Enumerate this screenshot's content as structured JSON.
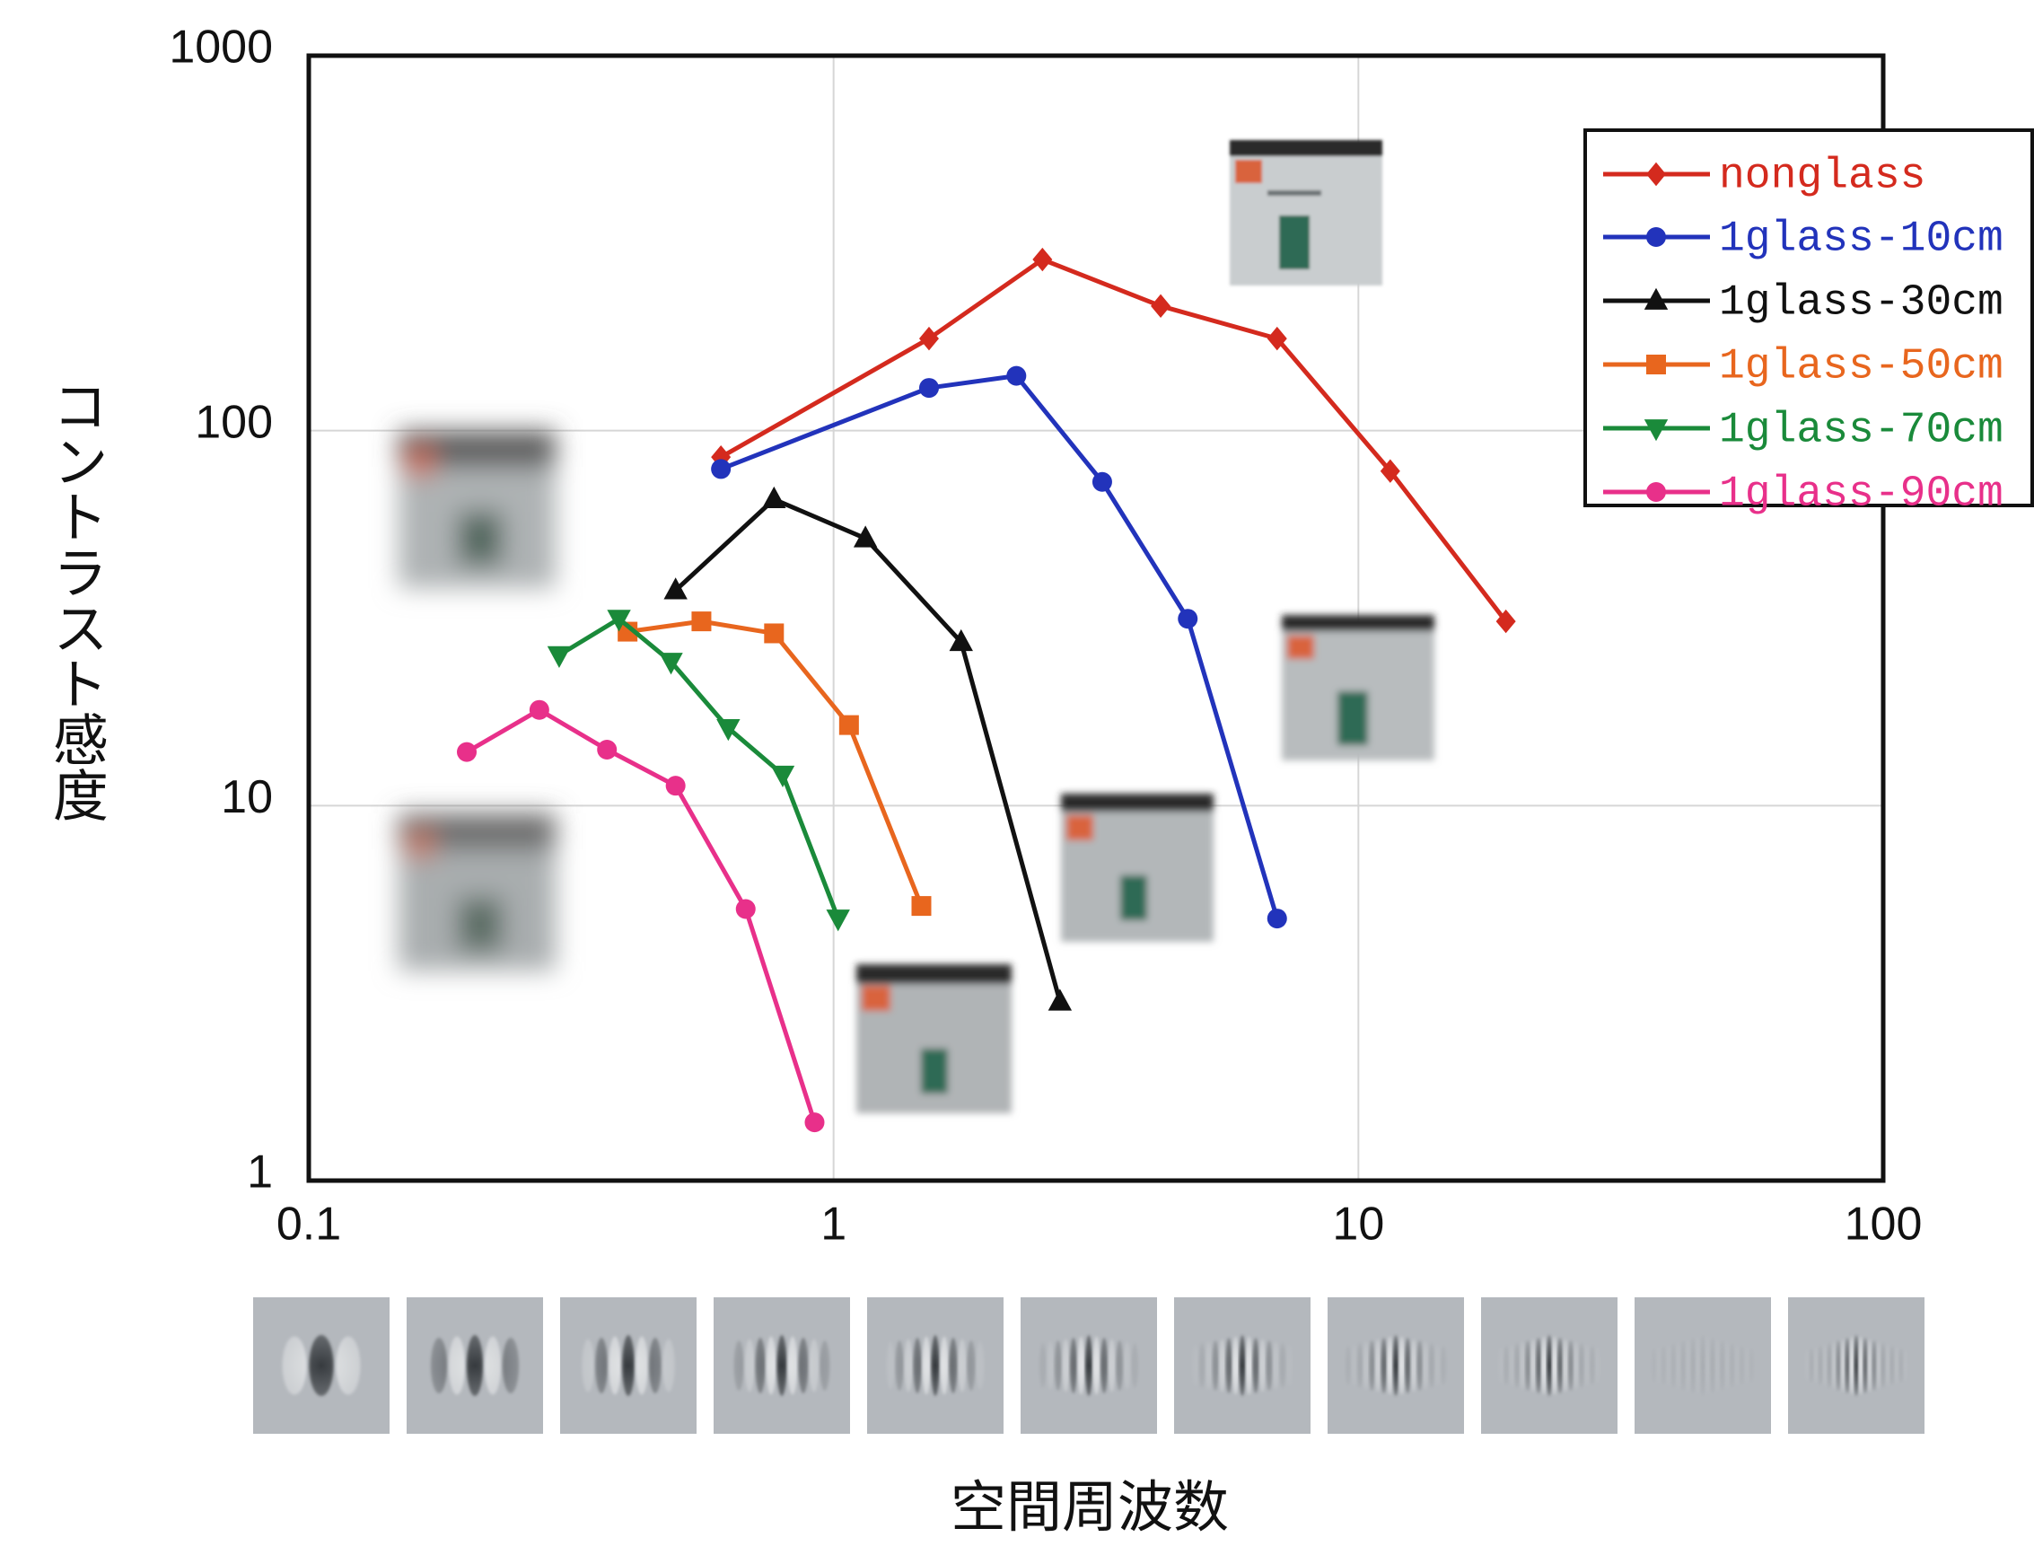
{
  "chart_data": {
    "type": "line",
    "xlabel": "空間周波数",
    "ylabel": "コントラスト感度",
    "xscale": "log",
    "yscale": "log",
    "xlim": [
      0.1,
      100
    ],
    "ylim": [
      1,
      1000
    ],
    "xticks": [
      0.1,
      1,
      10,
      100
    ],
    "yticks": [
      1,
      10,
      100,
      1000
    ],
    "grid": true,
    "legend": "upper right",
    "series": [
      {
        "name": "nonglass",
        "color": "#d42a1e",
        "marker": "diamond",
        "x": [
          0.61,
          1.52,
          2.5,
          4.2,
          7.0,
          11.5,
          19.1
        ],
        "values": [
          85,
          176,
          286,
          215,
          176,
          78,
          31
        ]
      },
      {
        "name": "1glass-10cm",
        "color": "#2233bb",
        "marker": "circle",
        "x": [
          0.61,
          1.52,
          2.23,
          3.25,
          4.73,
          7.0
        ],
        "values": [
          79,
          130,
          140,
          73,
          31.5,
          5.0
        ]
      },
      {
        "name": "1glass-30cm",
        "color": "#111111",
        "marker": "triangle-up",
        "x": [
          0.5,
          0.77,
          1.15,
          1.75,
          2.7
        ],
        "values": [
          37.5,
          65.6,
          51.6,
          27.3,
          3.0
        ]
      },
      {
        "name": "1glass-50cm",
        "color": "#e8661e",
        "marker": "square",
        "x": [
          0.405,
          0.56,
          0.77,
          1.07,
          1.47
        ],
        "values": [
          29.1,
          31,
          28.8,
          16.4,
          5.4
        ]
      },
      {
        "name": "1glass-70cm",
        "color": "#1a8a3a",
        "marker": "triangle-down",
        "x": [
          0.3,
          0.39,
          0.49,
          0.63,
          0.8,
          1.02
        ],
        "values": [
          25.2,
          31.5,
          24.2,
          16.1,
          12.1,
          5.0
        ]
      },
      {
        "name": "1glass-90cm",
        "color": "#e8308a",
        "marker": "circle",
        "x": [
          0.2,
          0.275,
          0.37,
          0.5,
          0.68,
          0.92
        ],
        "values": [
          13.9,
          18.0,
          14.1,
          11.3,
          5.3,
          1.43
        ]
      }
    ]
  }
}
